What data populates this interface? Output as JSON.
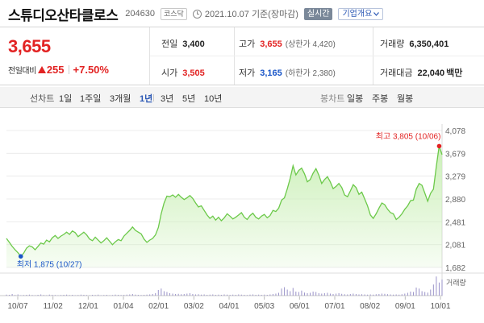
{
  "header": {
    "title": "스튜디오산타클로스",
    "code": "204630",
    "market_tag": "코스닥",
    "date_text": "2021.10.07 기준(장마감)",
    "live_badge": "실시간",
    "company_button": "기업개요"
  },
  "price_panel": {
    "price": "3,655",
    "change_label": "전일대비",
    "change_amount": "255",
    "change_rate": "+7.50%"
  },
  "stats": {
    "prev_close": {
      "label": "전일",
      "value": "3,400"
    },
    "high": {
      "label": "고가",
      "value": "3,655",
      "sub": "(상한가 4,420)"
    },
    "volume": {
      "label": "거래량",
      "value": "6,350,401"
    },
    "open": {
      "label": "시가",
      "value": "3,505"
    },
    "low": {
      "label": "저가",
      "value": "3,165",
      "sub": "(하한가 2,380)"
    },
    "trade_value": {
      "label": "거래대금",
      "value": "22,040",
      "unit": "백만"
    }
  },
  "periods": {
    "label": "선차트",
    "items": [
      "1일",
      "1주일",
      "3개월",
      "1년",
      "3년",
      "5년",
      "10년"
    ],
    "active_index": 3
  },
  "bong": {
    "label": "봉차트",
    "items": [
      "일봉",
      "주봉",
      "월봉"
    ]
  },
  "colors": {
    "up": "#e22323",
    "down": "#1a56c8",
    "line": "#6cc94a",
    "area": "#c9efb5"
  },
  "chart_data": {
    "type": "area",
    "y_ticks": [
      "4,078",
      "3,679",
      "3,279",
      "2,880",
      "2,481",
      "2,081",
      "1,682"
    ],
    "y_min": 1682,
    "y_max": 4078,
    "x_ticks": [
      "10/07",
      "11/02",
      "12/01",
      "01/04",
      "02/01",
      "03/02",
      "04/01",
      "05/03",
      "06/01",
      "07/01",
      "08/02",
      "09/01",
      "10/01"
    ],
    "max_label": "최고 3,805 (10/06)",
    "min_label": "최저 1,875 (10/27)",
    "volume_label": "거래량",
    "values": [
      2190,
      2120,
      2050,
      1990,
      1940,
      1875,
      1930,
      2020,
      2060,
      2040,
      1990,
      2050,
      2110,
      2090,
      2160,
      2130,
      2200,
      2240,
      2190,
      2230,
      2260,
      2300,
      2260,
      2320,
      2290,
      2220,
      2260,
      2300,
      2250,
      2180,
      2150,
      2210,
      2160,
      2110,
      2150,
      2200,
      2140,
      2080,
      2130,
      2170,
      2150,
      2230,
      2280,
      2330,
      2390,
      2330,
      2300,
      2270,
      2180,
      2120,
      2160,
      2190,
      2250,
      2380,
      2620,
      2810,
      2930,
      2920,
      2950,
      2910,
      2960,
      2910,
      2870,
      2900,
      2940,
      2890,
      2810,
      2740,
      2760,
      2680,
      2600,
      2540,
      2580,
      2510,
      2560,
      2500,
      2550,
      2620,
      2580,
      2530,
      2560,
      2600,
      2640,
      2560,
      2520,
      2590,
      2630,
      2560,
      2530,
      2580,
      2610,
      2550,
      2590,
      2680,
      2660,
      2720,
      2860,
      2900,
      3060,
      3240,
      3460,
      3300,
      3380,
      3420,
      3320,
      3180,
      3220,
      3330,
      3410,
      3300,
      3150,
      3220,
      3270,
      3180,
      3060,
      3100,
      3150,
      3080,
      2950,
      2920,
      3020,
      3130,
      3080,
      2960,
      3000,
      2880,
      2760,
      2600,
      2540,
      2620,
      2720,
      2810,
      2780,
      2700,
      2640,
      2620,
      2520,
      2560,
      2620,
      2700,
      2760,
      2850,
      2860,
      3050,
      3150,
      3120,
      2980,
      2840,
      2980,
      3050,
      3450,
      3805,
      3655
    ],
    "volumes": [
      0.05,
      0.04,
      0.08,
      0.03,
      0.06,
      0.02,
      0.03,
      0.04,
      0.05,
      0.03,
      0.02,
      0.04,
      0.06,
      0.03,
      0.02,
      0.05,
      0.04,
      0.03,
      0.02,
      0.03,
      0.04,
      0.05,
      0.03,
      0.04,
      0.02,
      0.03,
      0.05,
      0.04,
      0.03,
      0.02,
      0.04,
      0.03,
      0.05,
      0.02,
      0.03,
      0.04,
      0.02,
      0.03,
      0.05,
      0.04,
      0.03,
      0.04,
      0.05,
      0.06,
      0.08,
      0.05,
      0.04,
      0.03,
      0.04,
      0.05,
      0.06,
      0.08,
      0.12,
      0.28,
      0.35,
      0.22,
      0.18,
      0.12,
      0.1,
      0.08,
      0.09,
      0.07,
      0.08,
      0.1,
      0.12,
      0.08,
      0.06,
      0.07,
      0.05,
      0.06,
      0.04,
      0.05,
      0.06,
      0.04,
      0.05,
      0.04,
      0.06,
      0.05,
      0.04,
      0.05,
      0.04,
      0.06,
      0.05,
      0.04,
      0.03,
      0.05,
      0.06,
      0.04,
      0.05,
      0.04,
      0.05,
      0.04,
      0.06,
      0.08,
      0.1,
      0.14,
      0.35,
      0.42,
      0.3,
      0.22,
      0.38,
      0.2,
      0.18,
      0.25,
      0.15,
      0.12,
      0.14,
      0.2,
      0.18,
      0.12,
      0.1,
      0.12,
      0.14,
      0.1,
      0.08,
      0.1,
      0.12,
      0.09,
      0.07,
      0.06,
      0.08,
      0.1,
      0.08,
      0.06,
      0.07,
      0.06,
      0.05,
      0.06,
      0.05,
      0.07,
      0.08,
      0.1,
      0.09,
      0.07,
      0.06,
      0.05,
      0.06,
      0.05,
      0.07,
      0.1,
      0.14,
      0.2,
      0.18,
      0.4,
      0.35,
      0.22,
      0.18,
      0.15,
      0.3,
      0.55,
      0.95,
      0.65,
      0.8
    ]
  }
}
